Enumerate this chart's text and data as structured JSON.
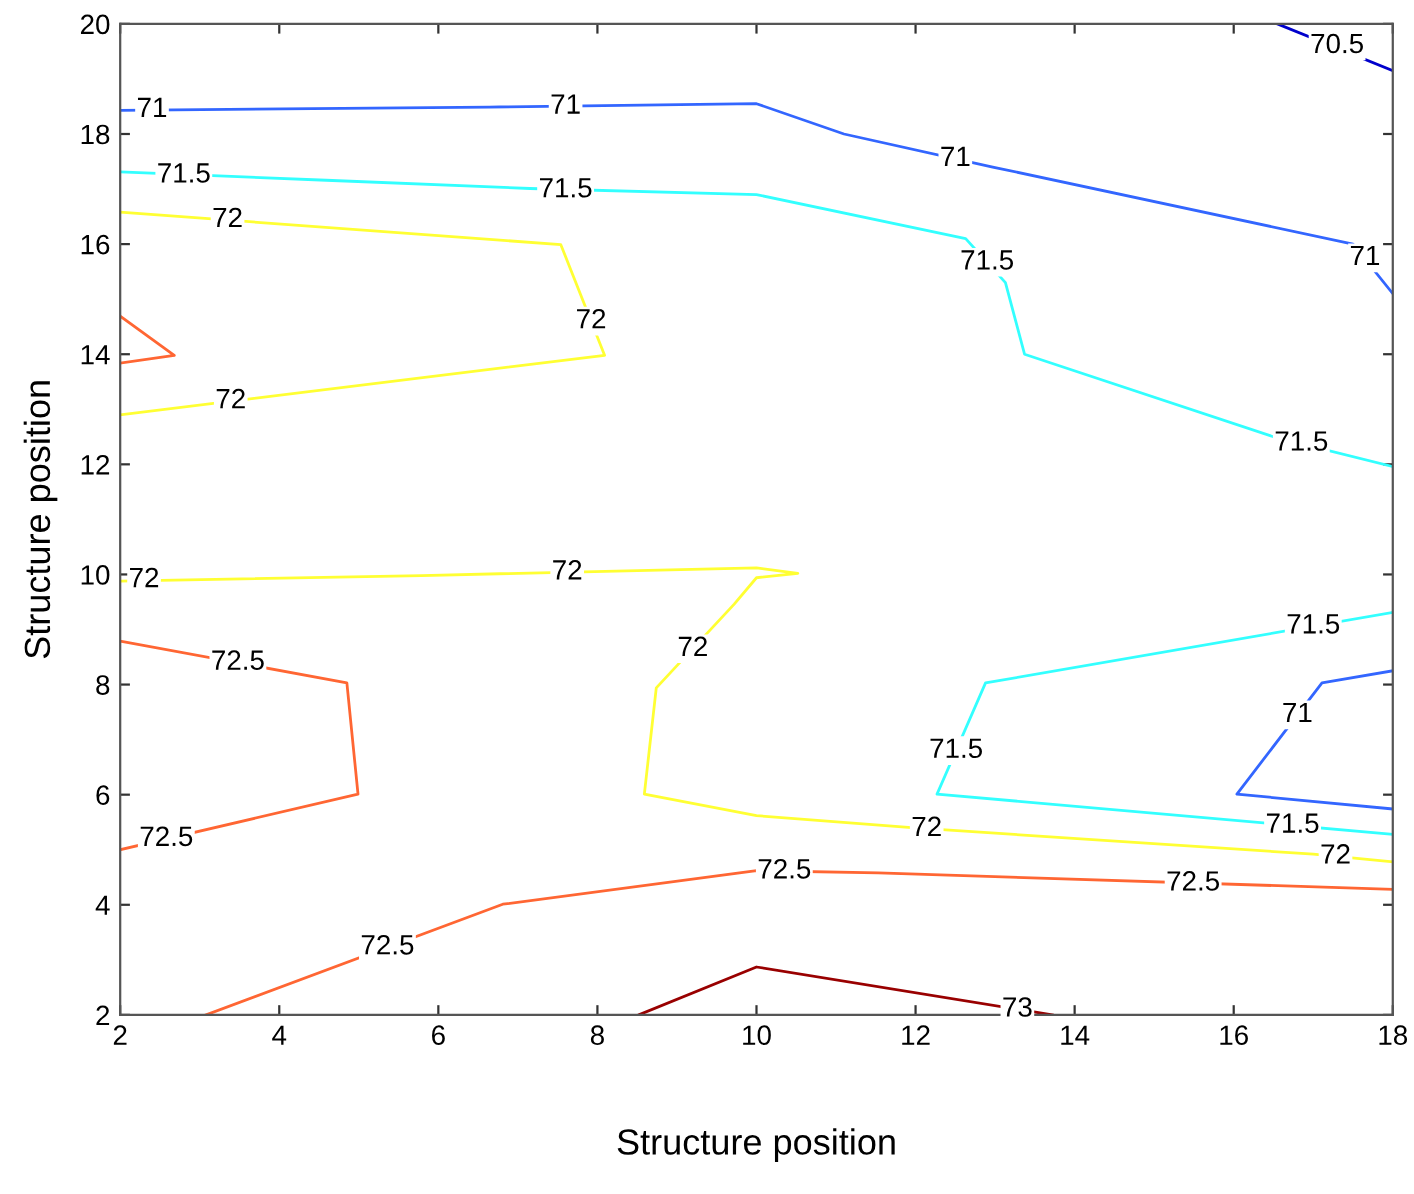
{
  "chart_data": {
    "type": "line",
    "xlabel": "Structure position",
    "ylabel": "Structure position",
    "xlim": [
      2,
      18
    ],
    "ylim": [
      2,
      20
    ],
    "xticks": [
      2,
      4,
      6,
      8,
      10,
      12,
      14,
      16,
      18
    ],
    "yticks": [
      2,
      4,
      6,
      8,
      10,
      12,
      14,
      16,
      18,
      20
    ],
    "grid": false,
    "series": [
      {
        "color": "#0000cc",
        "x": [
          16.55,
          18
        ],
        "values": [
          20,
          19.15
        ]
      },
      {
        "color": "#3366ff",
        "x": [
          2,
          6.64,
          10,
          11.1,
          12.97,
          17.5,
          18
        ],
        "values": [
          18.43,
          18.49,
          18.55,
          18.0,
          17.4,
          16.0,
          15.1
        ]
      },
      {
        "color": "#33ffff",
        "x": [
          2,
          4.59,
          7.15,
          10,
          12.63,
          13.13,
          13.37,
          16.5,
          18
        ],
        "values": [
          17.31,
          17.16,
          17.01,
          16.9,
          16.1,
          15.3,
          14.0,
          12.5,
          11.96
        ]
      },
      {
        "color": "#ffff33",
        "x": [
          2,
          7.54,
          8.09,
          2
        ],
        "values": [
          16.58,
          15.99,
          13.98,
          12.9
        ]
      },
      {
        "color": "#ff6633",
        "x": [
          2,
          2.68,
          2
        ],
        "values": [
          14.69,
          13.98,
          13.84
        ]
      },
      {
        "color": "#ffff33",
        "x": [
          2,
          5.79,
          10,
          10.52,
          10,
          9.72,
          8.74,
          8.59,
          10,
          11.95,
          17.0,
          18
        ],
        "values": [
          9.88,
          9.98,
          10.12,
          10.02,
          9.94,
          9.46,
          7.94,
          6.01,
          5.62,
          5.4,
          4.92,
          4.78
        ]
      },
      {
        "color": "#ff6633",
        "x": [
          2,
          4.85,
          4.99,
          2
        ],
        "values": [
          8.79,
          8.03,
          6.01,
          5.0
        ]
      },
      {
        "color": "#ff6633",
        "x": [
          3.08,
          6.81,
          10,
          11.53,
          18
        ],
        "values": [
          2,
          4.01,
          4.62,
          4.58,
          4.28
        ]
      },
      {
        "color": "#990000",
        "x": [
          8.52,
          10,
          13.72
        ],
        "values": [
          2,
          2.87,
          2
        ]
      },
      {
        "color": "#33ffff",
        "x": [
          18,
          12.88,
          12.27,
          18
        ],
        "values": [
          9.31,
          8.03,
          6.01,
          5.28
        ]
      },
      {
        "color": "#3366ff",
        "x": [
          18,
          17.11,
          16.04,
          18
        ],
        "values": [
          8.25,
          8.03,
          6.01,
          5.74
        ]
      }
    ],
    "annotations": [
      {
        "text": "70.5",
        "x": 17.3,
        "y": 19.6
      },
      {
        "text": "71",
        "x": 2.4,
        "y": 18.44
      },
      {
        "text": "71",
        "x": 7.6,
        "y": 18.5
      },
      {
        "text": "71",
        "x": 12.5,
        "y": 17.55
      },
      {
        "text": "71",
        "x": 17.65,
        "y": 15.75
      },
      {
        "text": "71",
        "x": 16.8,
        "y": 7.45
      },
      {
        "text": "71.5",
        "x": 2.8,
        "y": 17.25
      },
      {
        "text": "71.5",
        "x": 7.6,
        "y": 16.98
      },
      {
        "text": "71.5",
        "x": 12.9,
        "y": 15.67
      },
      {
        "text": "71.5",
        "x": 16.85,
        "y": 12.38
      },
      {
        "text": "71.5",
        "x": 17.0,
        "y": 9.06
      },
      {
        "text": "71.5",
        "x": 12.51,
        "y": 6.8
      },
      {
        "text": "71.5",
        "x": 16.74,
        "y": 5.44
      },
      {
        "text": "72",
        "x": 3.35,
        "y": 16.44
      },
      {
        "text": "72",
        "x": 7.92,
        "y": 14.6
      },
      {
        "text": "72",
        "x": 3.39,
        "y": 13.15
      },
      {
        "text": "72",
        "x": 2.3,
        "y": 9.9
      },
      {
        "text": "72",
        "x": 7.62,
        "y": 10.04
      },
      {
        "text": "72",
        "x": 9.2,
        "y": 8.65
      },
      {
        "text": "72",
        "x": 12.14,
        "y": 5.38
      },
      {
        "text": "72",
        "x": 17.28,
        "y": 4.88
      },
      {
        "text": "72.5",
        "x": 3.48,
        "y": 8.4
      },
      {
        "text": "72.5",
        "x": 2.58,
        "y": 5.2
      },
      {
        "text": "72.5",
        "x": 5.36,
        "y": 3.23
      },
      {
        "text": "72.5",
        "x": 10.35,
        "y": 4.61
      },
      {
        "text": "72.5",
        "x": 15.49,
        "y": 4.39
      },
      {
        "text": "73",
        "x": 13.28,
        "y": 2.1
      }
    ]
  }
}
